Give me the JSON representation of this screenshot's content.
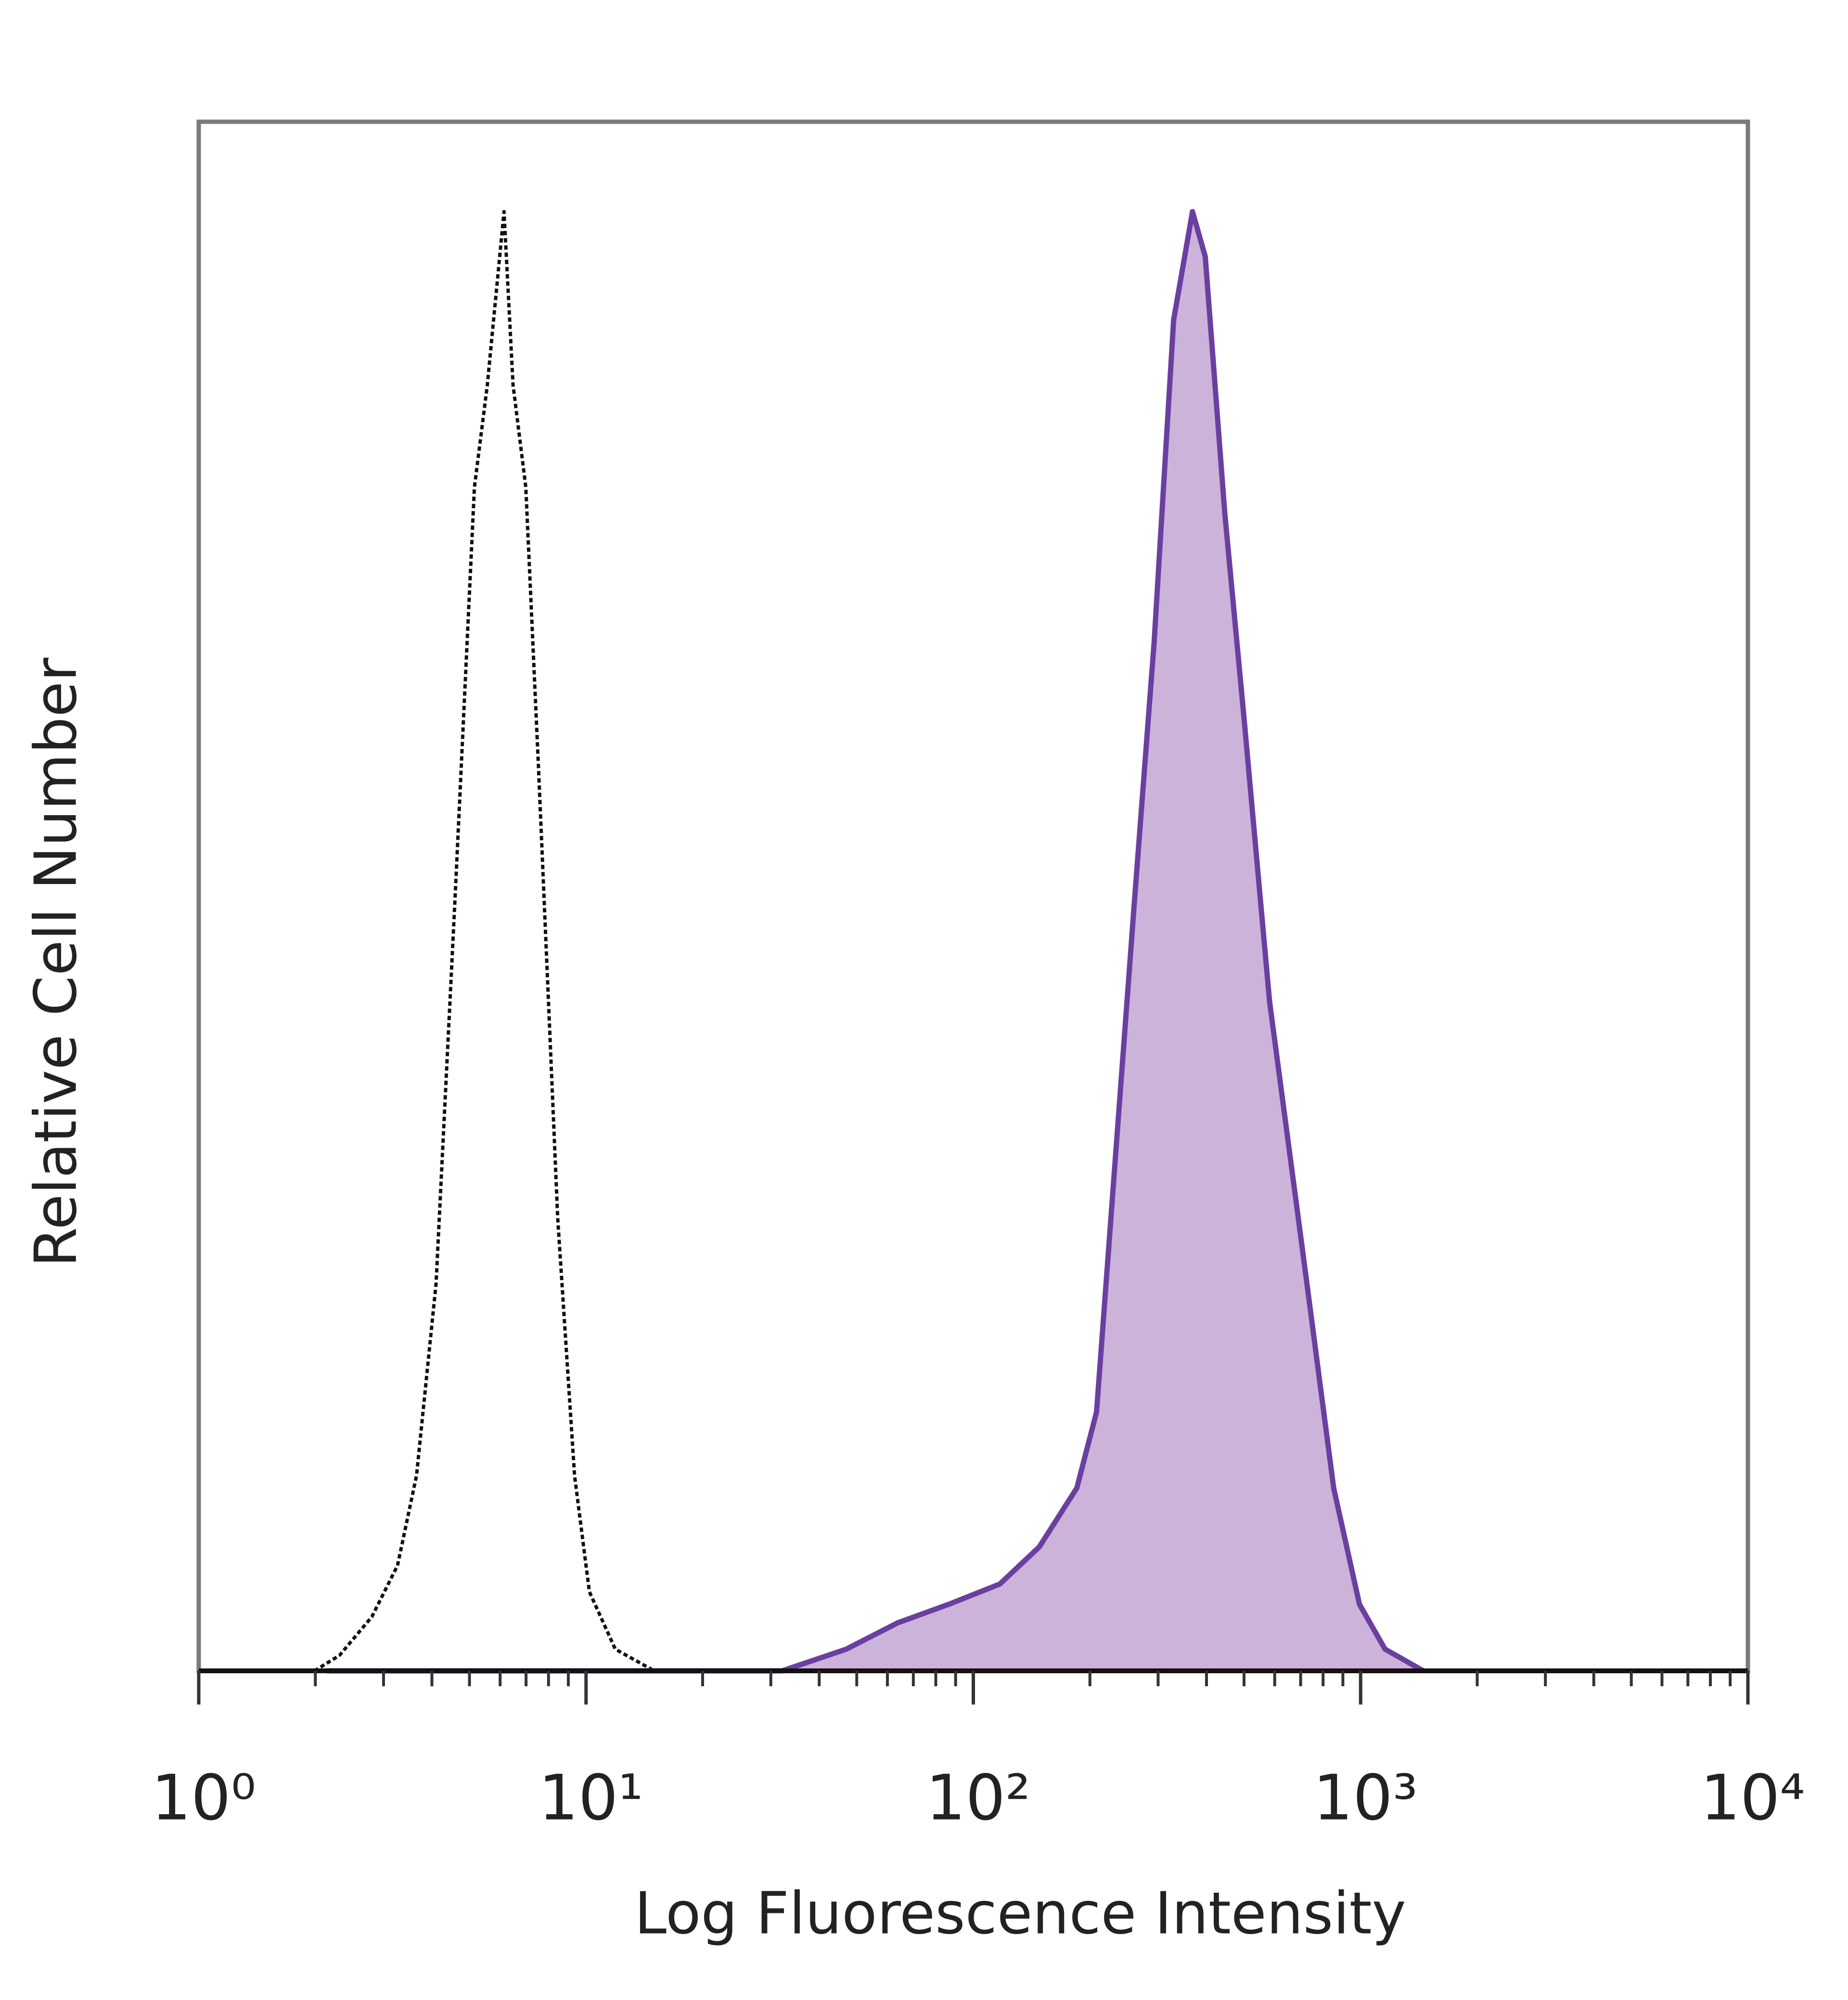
{
  "chart_data": {
    "type": "line",
    "x_label": "Log Fluorescence Intensity",
    "y_label": "Relative Cell Number",
    "xscale": "log",
    "xlim": [
      1,
      10000
    ],
    "ylim": [
      0,
      100
    ],
    "xticks": [
      {
        "value": 1,
        "label": "10⁰"
      },
      {
        "value": 10,
        "label": "10¹"
      },
      {
        "value": 100,
        "label": "10²"
      },
      {
        "value": 1000,
        "label": "10³"
      },
      {
        "value": 10000,
        "label": "10⁴"
      }
    ],
    "xminorticks": [
      2,
      3,
      4,
      5,
      6,
      7,
      8,
      9,
      20,
      30,
      40,
      50,
      60,
      70,
      80,
      90,
      200,
      300,
      400,
      500,
      600,
      700,
      800,
      900,
      2000,
      3000,
      4000,
      5000,
      6000,
      7000,
      8000,
      9000
    ],
    "series": [
      {
        "color": "#111111",
        "dashed": true,
        "fill": null,
        "x": [
          1.99,
          2.31,
          2.8,
          3.26,
          3.65,
          4.1,
          4.59,
          5.15,
          5.56,
          6.14,
          6.48,
          6.99,
          7.54,
          8.45,
          9.34,
          10.2,
          11.9,
          15.0
        ],
        "values": [
          0,
          1.0,
          3.5,
          6.8,
          12.6,
          25,
          49.9,
          76.4,
          83,
          94.2,
          83,
          76.4,
          58.2,
          29.2,
          12.6,
          5.1,
          1.4,
          0
        ]
      },
      {
        "color": "#6a3fa0",
        "dashed": false,
        "fill": "#ccb3d9",
        "x": [
          2.14,
          32.1,
          47.0,
          63.8,
          86.5,
          117,
          148,
          185,
          208,
          233,
          261,
          293,
          329,
          368,
          397,
          446,
          500,
          582,
          705,
          852,
          993,
          1156,
          1452
        ],
        "values": [
          0,
          0,
          1.4,
          3.1,
          4.3,
          5.6,
          8.0,
          11.8,
          16.7,
          33.3,
          49.9,
          66.4,
          87.2,
          94.2,
          91.3,
          74.7,
          61.5,
          43.2,
          27.5,
          11.8,
          4.3,
          1.4,
          0
        ]
      }
    ]
  }
}
